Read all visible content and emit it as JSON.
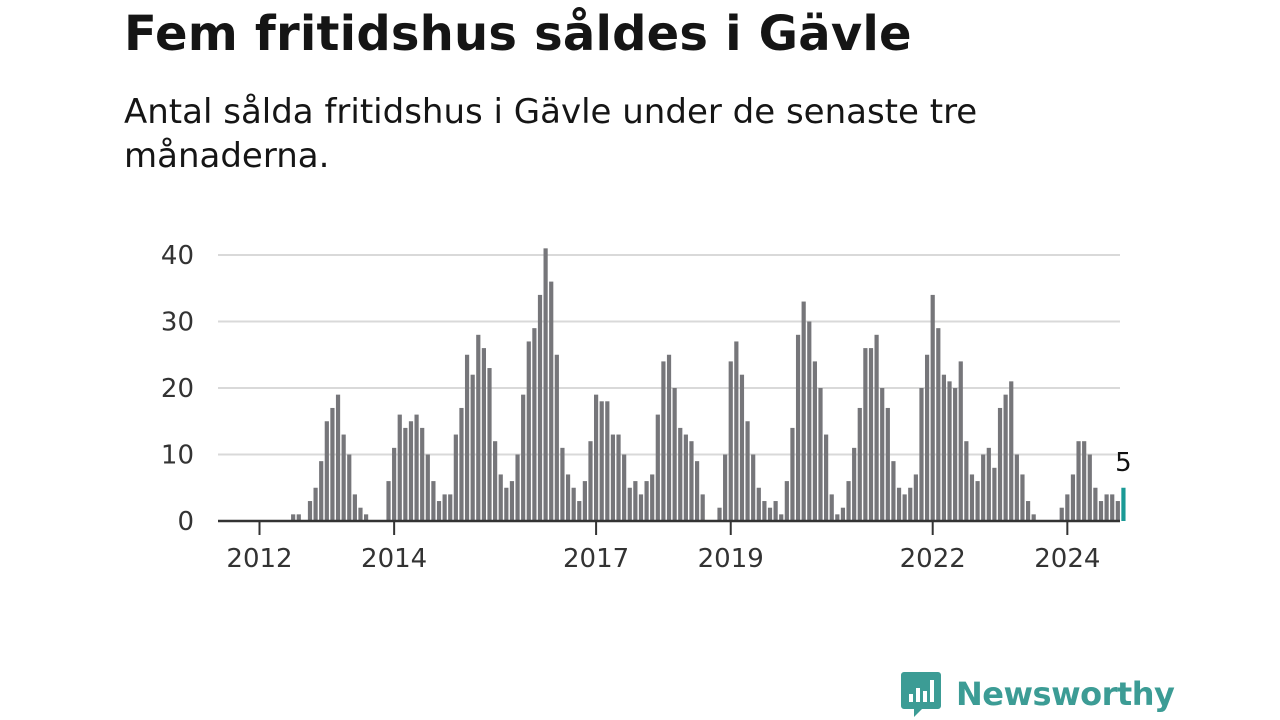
{
  "header": {
    "title": "Fem fritidshus såldes i Gävle",
    "subtitle": "Antal sålda fritidshus i Gävle under de senaste tre månaderna."
  },
  "logo": {
    "text": "Newsworthy",
    "icon": "chart-bubble-icon",
    "color": "#3c9c95"
  },
  "chart_data": {
    "type": "bar",
    "title": "",
    "xlabel": "",
    "ylabel": "",
    "ylim": [
      0,
      40
    ],
    "yticks": [
      0,
      10,
      20,
      30,
      40
    ],
    "x_tick_labels": [
      "2012",
      "2014",
      "2017",
      "2019",
      "2022",
      "2024"
    ],
    "grid": true,
    "bar_color": "#76767a",
    "highlight_color": "#1a9a96",
    "highlight_label": "5",
    "series": [
      {
        "values": [
          0,
          0,
          0,
          0,
          0,
          0,
          1,
          1,
          0,
          3,
          5,
          9,
          15,
          17,
          19,
          13,
          10,
          4,
          2,
          1,
          0,
          0,
          0,
          6,
          11,
          16,
          14,
          15,
          16,
          14,
          10,
          6,
          3,
          4,
          4,
          13,
          17,
          25,
          22,
          28,
          26,
          23,
          12,
          7,
          5,
          6,
          10,
          19,
          27,
          29,
          34,
          41,
          36,
          25,
          11,
          7,
          5,
          3,
          6,
          12,
          19,
          18,
          18,
          13,
          13,
          10,
          5,
          6,
          4,
          6,
          7,
          16,
          24,
          25,
          20,
          14,
          13,
          12,
          9,
          4,
          0,
          0,
          2,
          10,
          24,
          27,
          22,
          15,
          10,
          5,
          3,
          2,
          3,
          1,
          6,
          14,
          28,
          33,
          30,
          24,
          20,
          13,
          4,
          1,
          2,
          6,
          11,
          17,
          26,
          26,
          28,
          20,
          17,
          9,
          5,
          4,
          5,
          7,
          20,
          25,
          34,
          29,
          22,
          21,
          20,
          24,
          12,
          7,
          6,
          10,
          11,
          8,
          17,
          19,
          21,
          10,
          7,
          3,
          1,
          0,
          0,
          0,
          0,
          2,
          4,
          7,
          12,
          12,
          10,
          5,
          3,
          4,
          4,
          3,
          5
        ]
      }
    ]
  }
}
